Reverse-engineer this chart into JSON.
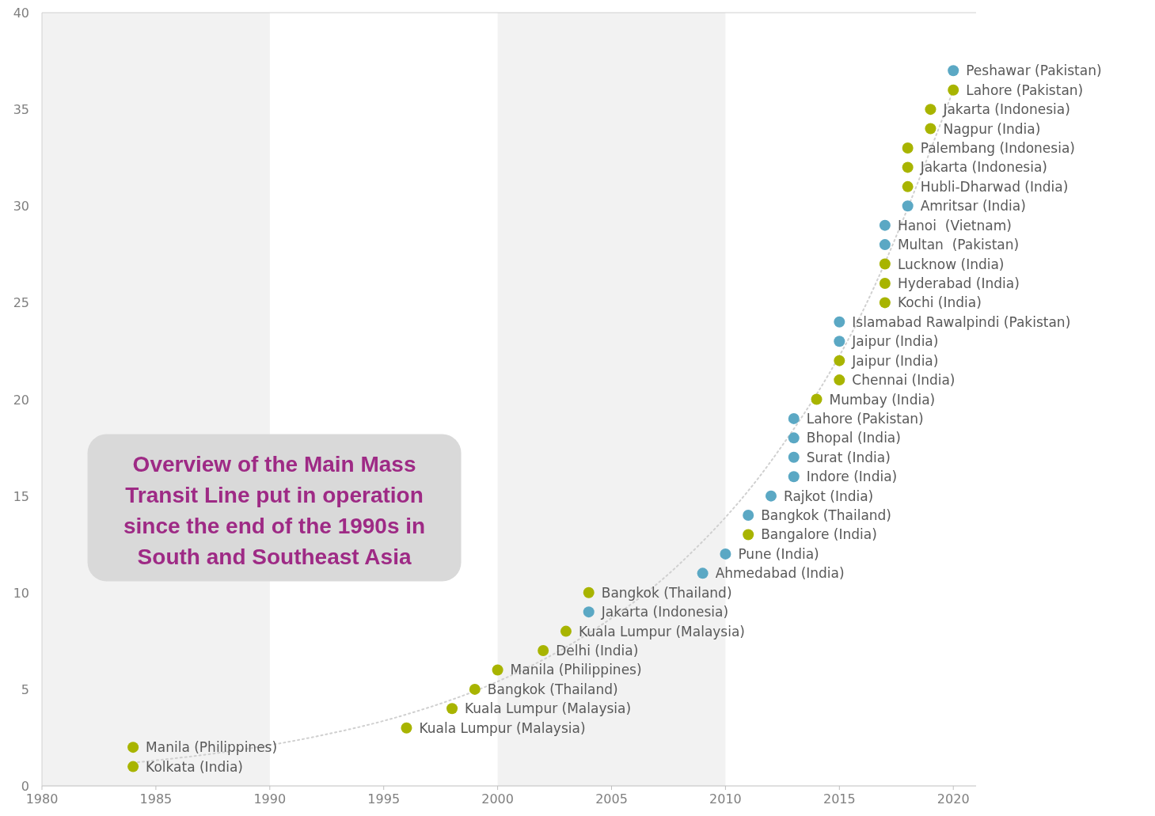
{
  "chart_data": {
    "type": "scatter",
    "title": "Overview of the Main Mass Transit Line put in operation since the end of the 1990s in South and Southeast Asia",
    "xlim": [
      1980,
      2021
    ],
    "xticks": [
      1980,
      1985,
      1990,
      1995,
      2000,
      2005,
      2010,
      2015,
      2020
    ],
    "ylim": [
      0,
      40
    ],
    "yticks": [
      0,
      5,
      10,
      15,
      20,
      25,
      30,
      35,
      40
    ],
    "grid": false,
    "marker": "circle",
    "bands": [
      {
        "axis": "x",
        "from": 1980,
        "to": 1990,
        "color": "#f2f2f2"
      },
      {
        "axis": "x",
        "from": 2000,
        "to": 2010,
        "color": "#f2f2f2"
      }
    ],
    "series": [
      {
        "type": "line",
        "color": "#d0d0d0",
        "line_style": "dotted",
        "marker": "none",
        "x": [
          1984,
          1988,
          1992,
          1996,
          2000,
          2004,
          2008,
          2012,
          2016,
          2020
        ],
        "values": [
          1.2,
          1.75,
          2.55,
          3.7,
          5.4,
          7.9,
          11.5,
          16.8,
          24.5,
          36
        ]
      },
      {
        "color": "#a8b400",
        "x": [
          1984,
          1984,
          1996,
          1998,
          1999,
          2000,
          2002,
          2003,
          2004,
          2011,
          2014,
          2015,
          2015,
          2017,
          2017,
          2017,
          2018,
          2018,
          2018,
          2019,
          2019,
          2020
        ],
        "values": [
          1,
          2,
          3,
          4,
          5,
          6,
          7,
          8,
          10,
          13,
          20,
          21,
          22,
          25,
          26,
          27,
          31,
          32,
          33,
          34,
          35,
          36
        ]
      },
      {
        "color": "#5ba8c4",
        "x": [
          2004,
          2009,
          2010,
          2011,
          2012,
          2013,
          2013,
          2013,
          2013,
          2015,
          2015,
          2017,
          2017,
          2018,
          2020
        ],
        "values": [
          9,
          11,
          12,
          14,
          15,
          16,
          17,
          18,
          19,
          23,
          24,
          28,
          29,
          30,
          37
        ]
      }
    ],
    "annotations": [
      {
        "text": "Kolkata (India)",
        "x": 1984,
        "y": 1
      },
      {
        "text": "Manila (Philippines)",
        "x": 1984,
        "y": 2
      },
      {
        "text": "Kuala Lumpur (Malaysia)",
        "x": 1996,
        "y": 3
      },
      {
        "text": "Kuala Lumpur (Malaysia)",
        "x": 1998,
        "y": 4
      },
      {
        "text": "Bangkok (Thailand)",
        "x": 1999,
        "y": 5
      },
      {
        "text": "Manila (Philippines)",
        "x": 2000,
        "y": 6
      },
      {
        "text": "Delhi (India)",
        "x": 2002,
        "y": 7
      },
      {
        "text": "Kuala Lumpur (Malaysia)",
        "x": 2003,
        "y": 8
      },
      {
        "text": "Jakarta (Indonesia)",
        "x": 2004,
        "y": 9
      },
      {
        "text": "Bangkok (Thailand)",
        "x": 2004,
        "y": 10
      },
      {
        "text": "Ahmedabad (India)",
        "x": 2009,
        "y": 11
      },
      {
        "text": "Pune (India)",
        "x": 2010,
        "y": 12
      },
      {
        "text": "Bangalore (India)",
        "x": 2011,
        "y": 13
      },
      {
        "text": "Bangkok (Thailand)",
        "x": 2011,
        "y": 14
      },
      {
        "text": "Rajkot (India)",
        "x": 2012,
        "y": 15
      },
      {
        "text": "Indore (India)",
        "x": 2013,
        "y": 16
      },
      {
        "text": "Surat (India)",
        "x": 2013,
        "y": 17
      },
      {
        "text": "Bhopal (India)",
        "x": 2013,
        "y": 18
      },
      {
        "text": "Lahore (Pakistan)",
        "x": 2013,
        "y": 19
      },
      {
        "text": "Mumbay (India)",
        "x": 2014,
        "y": 20
      },
      {
        "text": "Chennai (India)",
        "x": 2015,
        "y": 21
      },
      {
        "text": "Jaipur (India)",
        "x": 2015,
        "y": 22
      },
      {
        "text": "Jaipur (India)",
        "x": 2015,
        "y": 23
      },
      {
        "text": "Islamabad Rawalpindi (Pakistan)",
        "x": 2015,
        "y": 24
      },
      {
        "text": "Kochi (India)",
        "x": 2017,
        "y": 25
      },
      {
        "text": "Hyderabad (India)",
        "x": 2017,
        "y": 26
      },
      {
        "text": "Lucknow (India)",
        "x": 2017,
        "y": 27
      },
      {
        "text": "Multan  (Pakistan)",
        "x": 2017,
        "y": 28
      },
      {
        "text": "Hanoi  (Vietnam)",
        "x": 2017,
        "y": 29
      },
      {
        "text": "Amritsar (India)",
        "x": 2018,
        "y": 30
      },
      {
        "text": "Hubli-Dharwad (India)",
        "x": 2018,
        "y": 31
      },
      {
        "text": "Jakarta (Indonesia)",
        "x": 2018,
        "y": 32
      },
      {
        "text": "Palembang (Indonesia)",
        "x": 2018,
        "y": 33
      },
      {
        "text": "Nagpur (India)",
        "x": 2019,
        "y": 34
      },
      {
        "text": "Jakarta (Indonesia)",
        "x": 2019,
        "y": 35
      },
      {
        "text": "Lahore (Pakistan)",
        "x": 2020,
        "y": 36
      },
      {
        "text": "Peshawar (Pakistan)",
        "x": 2020,
        "y": 37
      }
    ]
  }
}
